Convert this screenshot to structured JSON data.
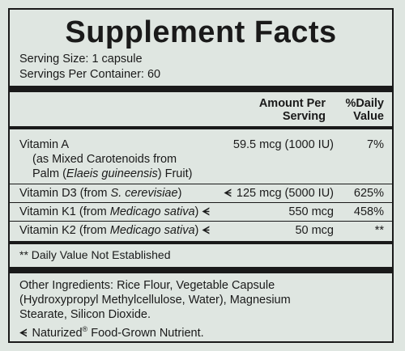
{
  "title": "Supplement Facts",
  "serving_size": "Serving Size: 1 capsule",
  "servings_per_container": "Servings Per Container: 60",
  "header": {
    "amount_line1": "Amount Per",
    "amount_line2": "Serving",
    "dv_line1": "%Daily",
    "dv_line2": "Value"
  },
  "nutrients": [
    {
      "name": "Vitamin A",
      "detail_line1": "(as Mixed Carotenoids from",
      "detail_prefix": "Palm (",
      "detail_italic": "Elaeis guineensis",
      "detail_suffix": ") Fruit)",
      "amount": "59.5 mcg (1000 IU)",
      "dv": "7%"
    },
    {
      "name_prefix": "Vitamin D3 (from ",
      "name_italic": "S. cerevisiae",
      "name_suffix": ")",
      "symbol": "ᗕ",
      "amount": "125 mcg (5000 IU)",
      "dv": "625%"
    },
    {
      "name_prefix": "Vitamin K1 (from ",
      "name_italic": "Medicago sativa",
      "name_suffix": ")",
      "symbol": "ᗕ",
      "amount": "550 mcg",
      "dv": "458%"
    },
    {
      "name_prefix": "Vitamin K2 (from ",
      "name_italic": "Medicago sativa",
      "name_suffix": ")",
      "symbol": "ᗕ",
      "amount": "50 mcg",
      "dv": "**"
    }
  ],
  "footnote": "** Daily Value Not Established",
  "other_ingredients": [
    "Other Ingredients: Rice Flour, Vegetable Capsule",
    "(Hydroxypropyl Methylcellulose, Water), Magnesium",
    "Stearate, Silicon Dioxide."
  ],
  "naturized": {
    "symbol": "ᗕ",
    "text_pre": "Naturized",
    "reg": "®",
    "text_post": " Food-Grown Nutrient."
  }
}
